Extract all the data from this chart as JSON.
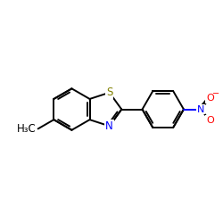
{
  "bg_color": "#ffffff",
  "bond_color": "#000000",
  "N_color": "#0000ff",
  "S_color": "#808000",
  "O_color": "#ff0000",
  "C_color": "#000000",
  "bond_width": 1.4,
  "figsize": [
    2.5,
    2.5
  ],
  "dpi": 100,
  "xlim": [
    0,
    10
  ],
  "ylim": [
    0,
    10
  ]
}
